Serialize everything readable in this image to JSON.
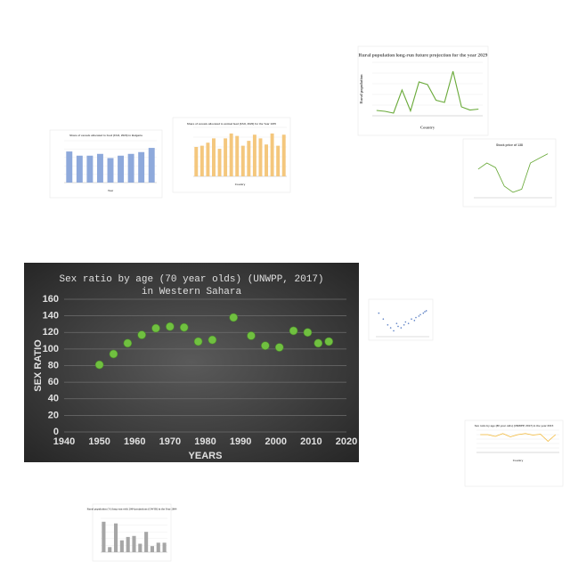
{
  "chart_data": [
    {
      "type": "scatter",
      "title": [
        "Sex ratio by age (70 year olds) (UNWPP, 2017)",
        "in Western Sahara"
      ],
      "x_label": "YEARS",
      "y_label": "SEX RATIO",
      "color": "#70c040",
      "x": [
        1950,
        1954,
        1958,
        1962,
        1966,
        1970,
        1974,
        1978,
        1982,
        1988,
        1993,
        1997,
        2001,
        2005,
        2009,
        2012,
        2015
      ],
      "values": [
        81,
        94,
        107,
        117,
        125,
        127,
        126,
        109,
        111,
        138,
        116,
        104,
        102,
        122,
        120,
        107,
        109
      ],
      "xlim": [
        1940,
        2020
      ],
      "xticks": [
        1940,
        1950,
        1960,
        1970,
        1980,
        1990,
        2000,
        2010,
        2020
      ],
      "ylim": [
        0,
        160
      ],
      "yticks": [
        0,
        20,
        40,
        60,
        80,
        100,
        120,
        140,
        160
      ],
      "grid": true,
      "background": "dark"
    },
    {
      "type": "bar",
      "title": "Share of cereals allocated to food (FAO, 2020) in Bulgaria",
      "x_label": "Year",
      "color": "#8ea9db",
      "values": [
        52,
        45,
        45,
        48,
        41,
        45,
        48,
        51,
        58
      ],
      "ylim": [
        0,
        70
      ],
      "grid": true
    },
    {
      "type": "bar",
      "title": "Share of cereals allocated to animal feed (FAO, 2020) for the Year 1970",
      "x_label": "Country",
      "color": "#f4c77d",
      "values": [
        48,
        50,
        55,
        62,
        45,
        62,
        70,
        66,
        50,
        58,
        68,
        62,
        52,
        70,
        50,
        68
      ],
      "ylim": [
        0,
        80
      ],
      "grid": true
    },
    {
      "type": "line",
      "title": "Rural population long-run future projection for the year 2029",
      "x_label": "Country",
      "y_label": "Rural population",
      "color": "#6aaa3a",
      "values": [
        12000000,
        10000000,
        6000000,
        58000000,
        11000000,
        76000000,
        70000000,
        35000000,
        30000000,
        100000000,
        20000000,
        13000000,
        15000000
      ],
      "ylim": [
        0,
        120000000
      ],
      "grid": true
    },
    {
      "type": "line",
      "title": "Stock price of 138",
      "color": "#6aaa3a",
      "values": [
        62,
        70,
        64,
        40,
        32,
        36,
        70,
        76,
        82
      ],
      "ylim": [
        25,
        85
      ],
      "grid": false
    },
    {
      "type": "scatter",
      "color": "#5b7fc4",
      "x": [
        2,
        5,
        8,
        10,
        12,
        14,
        15,
        17,
        19,
        20,
        22,
        24,
        26,
        27,
        29,
        30,
        32,
        33,
        34
      ],
      "values": [
        80,
        60,
        40,
        30,
        20,
        45,
        35,
        30,
        40,
        50,
        45,
        60,
        55,
        65,
        70,
        75,
        80,
        85,
        88
      ],
      "xlim": [
        0,
        36
      ],
      "ylim": [
        0,
        100
      ],
      "grid": false
    },
    {
      "type": "line",
      "title": "Sex ratio by age (80 year olds) (UNWPP, 2017) in the year 2015",
      "x_label": "Country",
      "color": "#f2b631",
      "values": [
        80,
        80,
        72,
        85,
        70,
        80,
        85,
        78,
        82,
        50,
        80
      ],
      "ylim": [
        0,
        100
      ],
      "grid": true
    },
    {
      "type": "bar",
      "title": "Rural population (%) long-run with 2004 projections (OWID) in the Year 2004",
      "color": "#a6a6a6",
      "values": [
        90,
        15,
        85,
        35,
        45,
        48,
        25,
        60,
        18,
        28,
        28
      ],
      "ylim": [
        0,
        100
      ],
      "grid": true
    }
  ]
}
